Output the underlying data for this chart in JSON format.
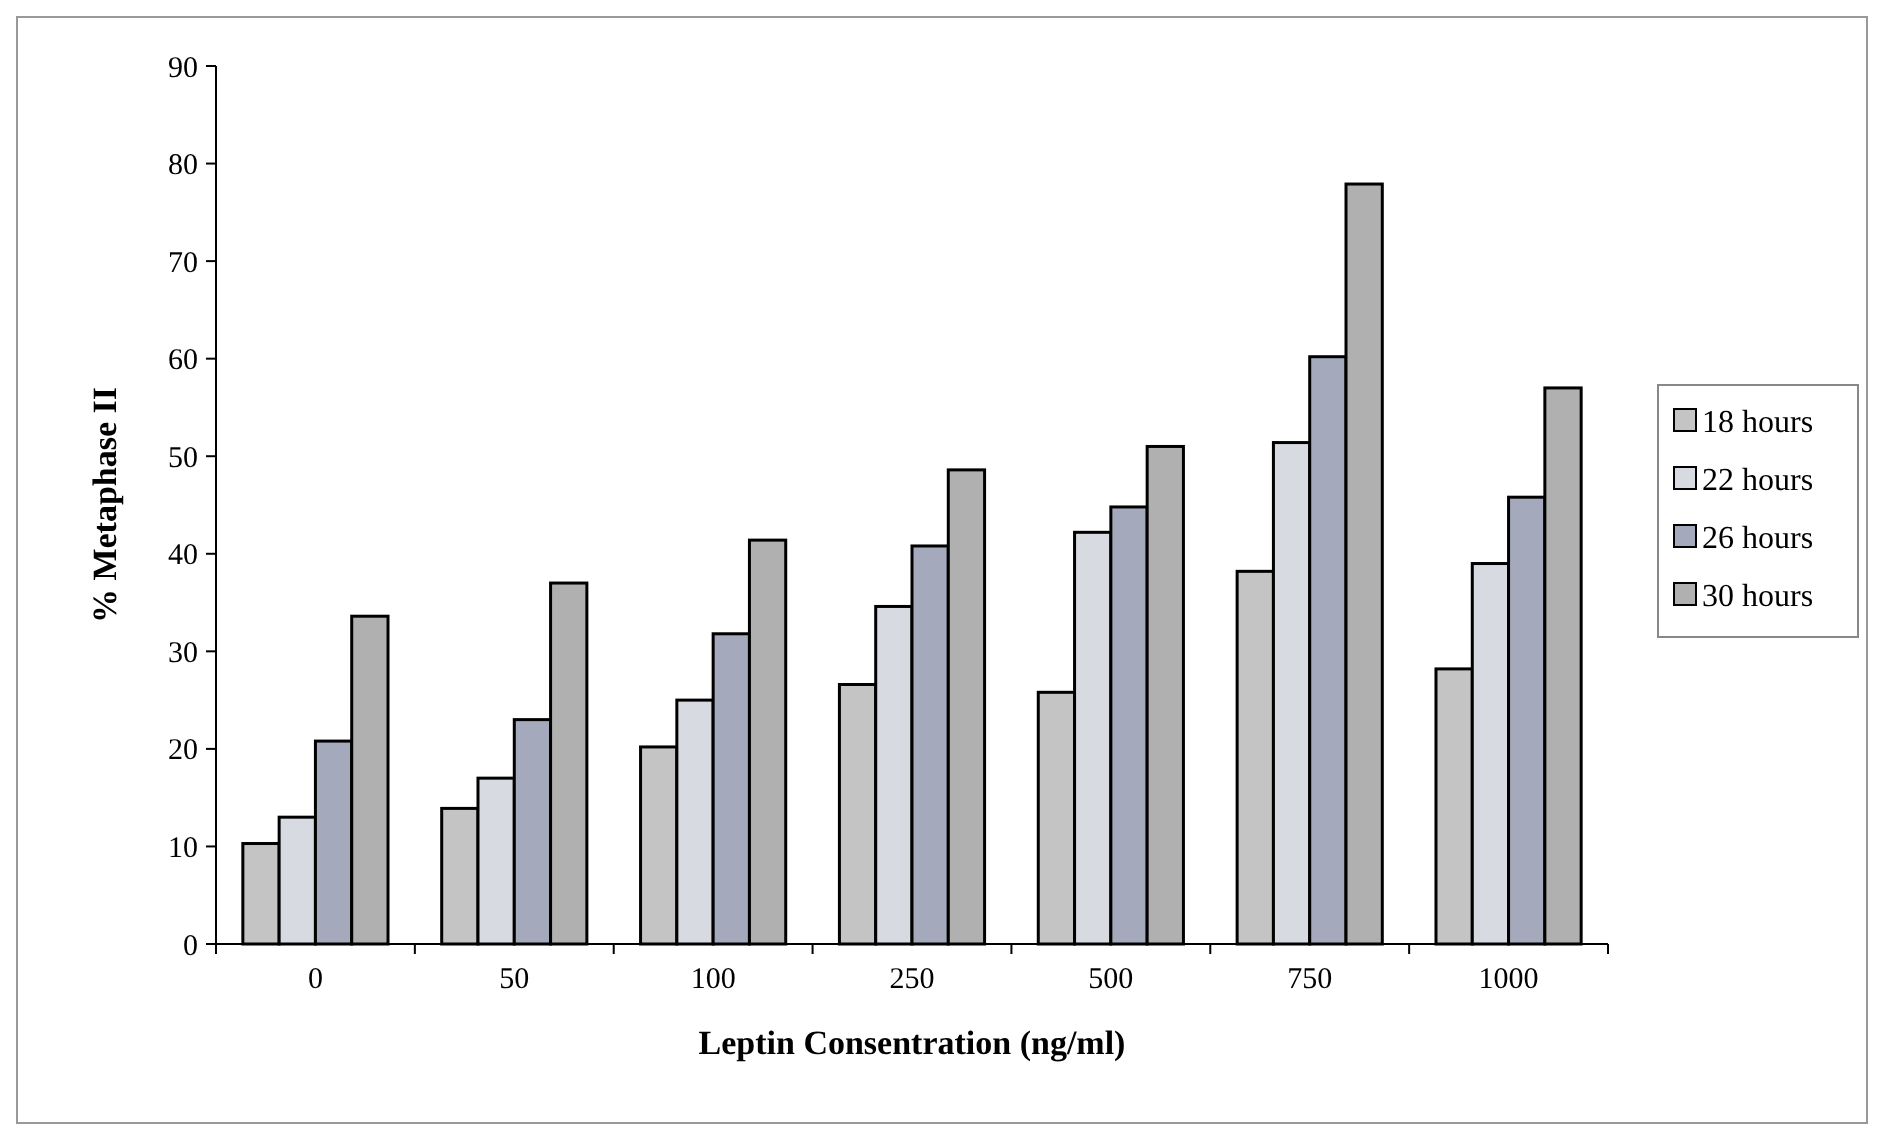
{
  "chart_data": {
    "type": "bar",
    "xlabel": "Leptin Consentration (ng/ml)",
    "ylabel": "% Metaphase II",
    "categories": [
      "0",
      "50",
      "100",
      "250",
      "500",
      "750",
      "1000"
    ],
    "series": [
      {
        "name": "18 hours",
        "color": "#c4c4c4",
        "values": [
          10.3,
          13.9,
          20.2,
          26.6,
          25.8,
          38.2,
          28.2
        ]
      },
      {
        "name": "22 hours",
        "color": "#d8dae2",
        "values": [
          13,
          17,
          25,
          34.6,
          42.2,
          51.4,
          39
        ]
      },
      {
        "name": "26 hours",
        "color": "#a4aabb",
        "values": [
          20.8,
          23,
          31.8,
          40.8,
          44.8,
          60.2,
          45.8
        ]
      },
      {
        "name": "30 hours",
        "color": "#b0b0b0",
        "values": [
          33.6,
          37,
          41.4,
          48.6,
          51,
          77.9,
          57
        ]
      }
    ],
    "ylim": [
      0,
      90
    ],
    "yticks": [
      0,
      10,
      20,
      30,
      40,
      50,
      60,
      70,
      80,
      90
    ],
    "grid": false,
    "legend": "right"
  }
}
